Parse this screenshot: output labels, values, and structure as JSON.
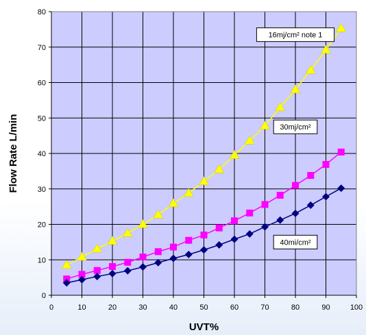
{
  "chart_data": {
    "type": "line",
    "title": "",
    "xlabel": "UVT%",
    "ylabel": "Flow  Rate  L/min",
    "xlim": [
      0,
      100
    ],
    "ylim": [
      0,
      80
    ],
    "x_ticks": [
      0,
      10,
      20,
      30,
      40,
      50,
      60,
      70,
      80,
      90,
      100
    ],
    "y_ticks": [
      0,
      10,
      20,
      30,
      40,
      50,
      60,
      70,
      80
    ],
    "grid": true,
    "legend": "none",
    "plot_background": "#ccccff",
    "x": [
      5,
      10,
      15,
      20,
      25,
      30,
      35,
      40,
      45,
      50,
      55,
      60,
      65,
      70,
      75,
      80,
      85,
      90,
      95
    ],
    "series": [
      {
        "color": "#ffff00",
        "marker": "triangle",
        "values": [
          8.5,
          10.8,
          13.1,
          15.3,
          17.5,
          20,
          22.7,
          25.9,
          28.8,
          32.1,
          35.5,
          39.5,
          43.6,
          47.8,
          53,
          58,
          63.5,
          69.2,
          75.3
        ]
      },
      {
        "color": "#ff00ff",
        "marker": "square",
        "values": [
          4.6,
          5.9,
          7,
          8.1,
          9.3,
          10.8,
          12.3,
          13.6,
          15.5,
          17,
          19,
          21,
          23.2,
          25.6,
          28.2,
          31,
          33.8,
          36.9,
          40.4
        ]
      },
      {
        "color": "#000080",
        "marker": "diamond",
        "values": [
          3.5,
          4.4,
          5.3,
          6.1,
          6.9,
          8,
          9.2,
          10.4,
          11.5,
          12.8,
          14.2,
          15.8,
          17.3,
          19.3,
          21.2,
          23.1,
          25.4,
          27.8,
          30.2
        ]
      }
    ],
    "annotations": [
      {
        "text": "16mj/cm²  note 1",
        "x": 80,
        "y": 73.5
      },
      {
        "text": "30mj/cm²",
        "x": 80,
        "y": 47.5
      },
      {
        "text": "40mi/cm²",
        "x": 80,
        "y": 15
      }
    ]
  }
}
